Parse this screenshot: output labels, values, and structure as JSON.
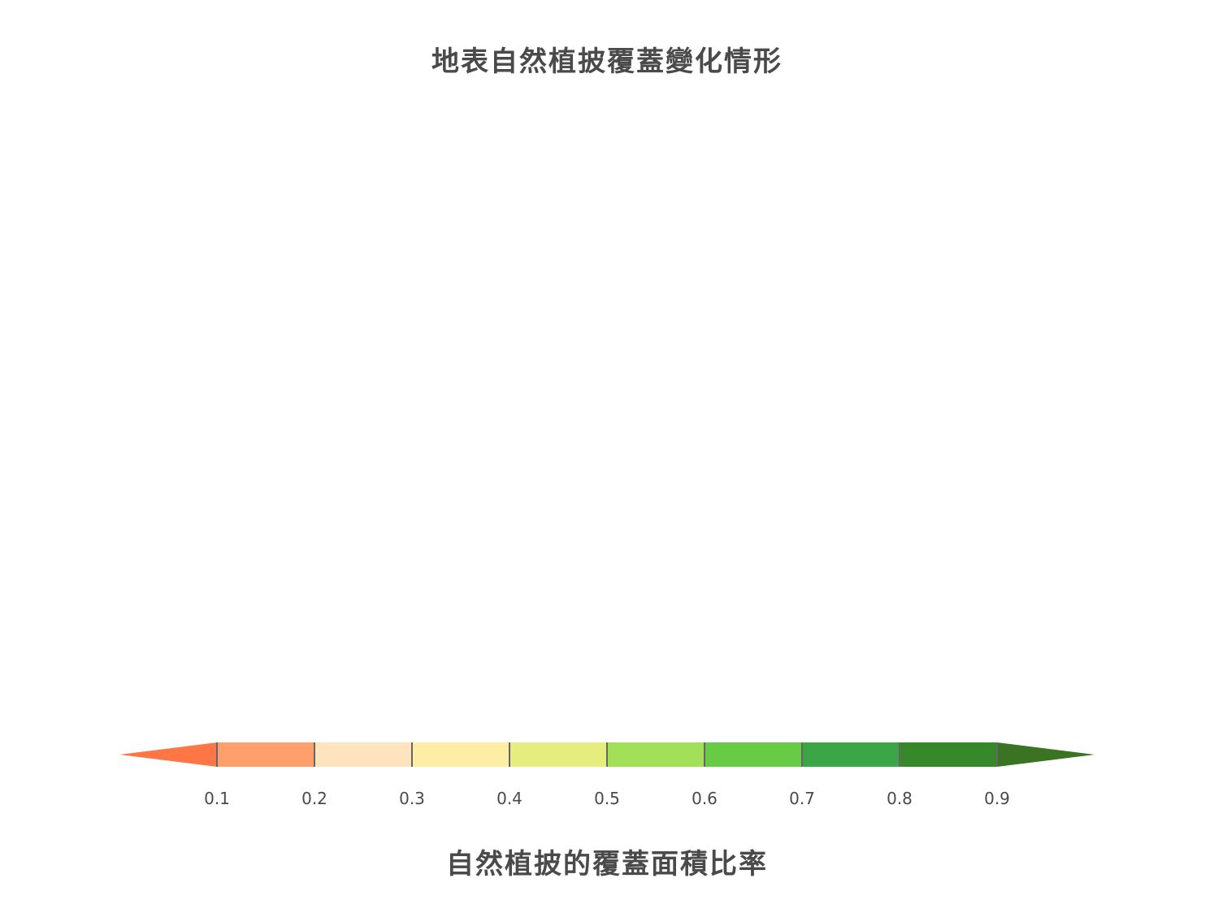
{
  "chart_data": {
    "type": "heatmap",
    "title": "地表自然植披覆蓋變化情形",
    "colorbar": {
      "label": "自然植披的覆蓋面積比率",
      "ticks": [
        0.1,
        0.2,
        0.3,
        0.4,
        0.5,
        0.6,
        0.7,
        0.8,
        0.9
      ],
      "tick_labels": [
        "0.1",
        "0.2",
        "0.3",
        "0.4",
        "0.5",
        "0.6",
        "0.7",
        "0.8",
        "0.9"
      ],
      "range": [
        0.0,
        1.0
      ],
      "extend": "both",
      "orientation": "horizontal",
      "under_color": "#ff7646",
      "over_color": "#3a7321",
      "bins": [
        {
          "from": 0.1,
          "to": 0.2,
          "color": "#ffa06c"
        },
        {
          "from": 0.2,
          "to": 0.3,
          "color": "#fde4bf"
        },
        {
          "from": 0.3,
          "to": 0.4,
          "color": "#feeda4"
        },
        {
          "from": 0.4,
          "to": 0.5,
          "color": "#e4ed7d"
        },
        {
          "from": 0.5,
          "to": 0.6,
          "color": "#a2e057"
        },
        {
          "from": 0.6,
          "to": 0.7,
          "color": "#67cb46"
        },
        {
          "from": 0.7,
          "to": 0.8,
          "color": "#3aa646"
        },
        {
          "from": 0.8,
          "to": 0.9,
          "color": "#36882b"
        }
      ],
      "tick_color": "#666666"
    }
  }
}
